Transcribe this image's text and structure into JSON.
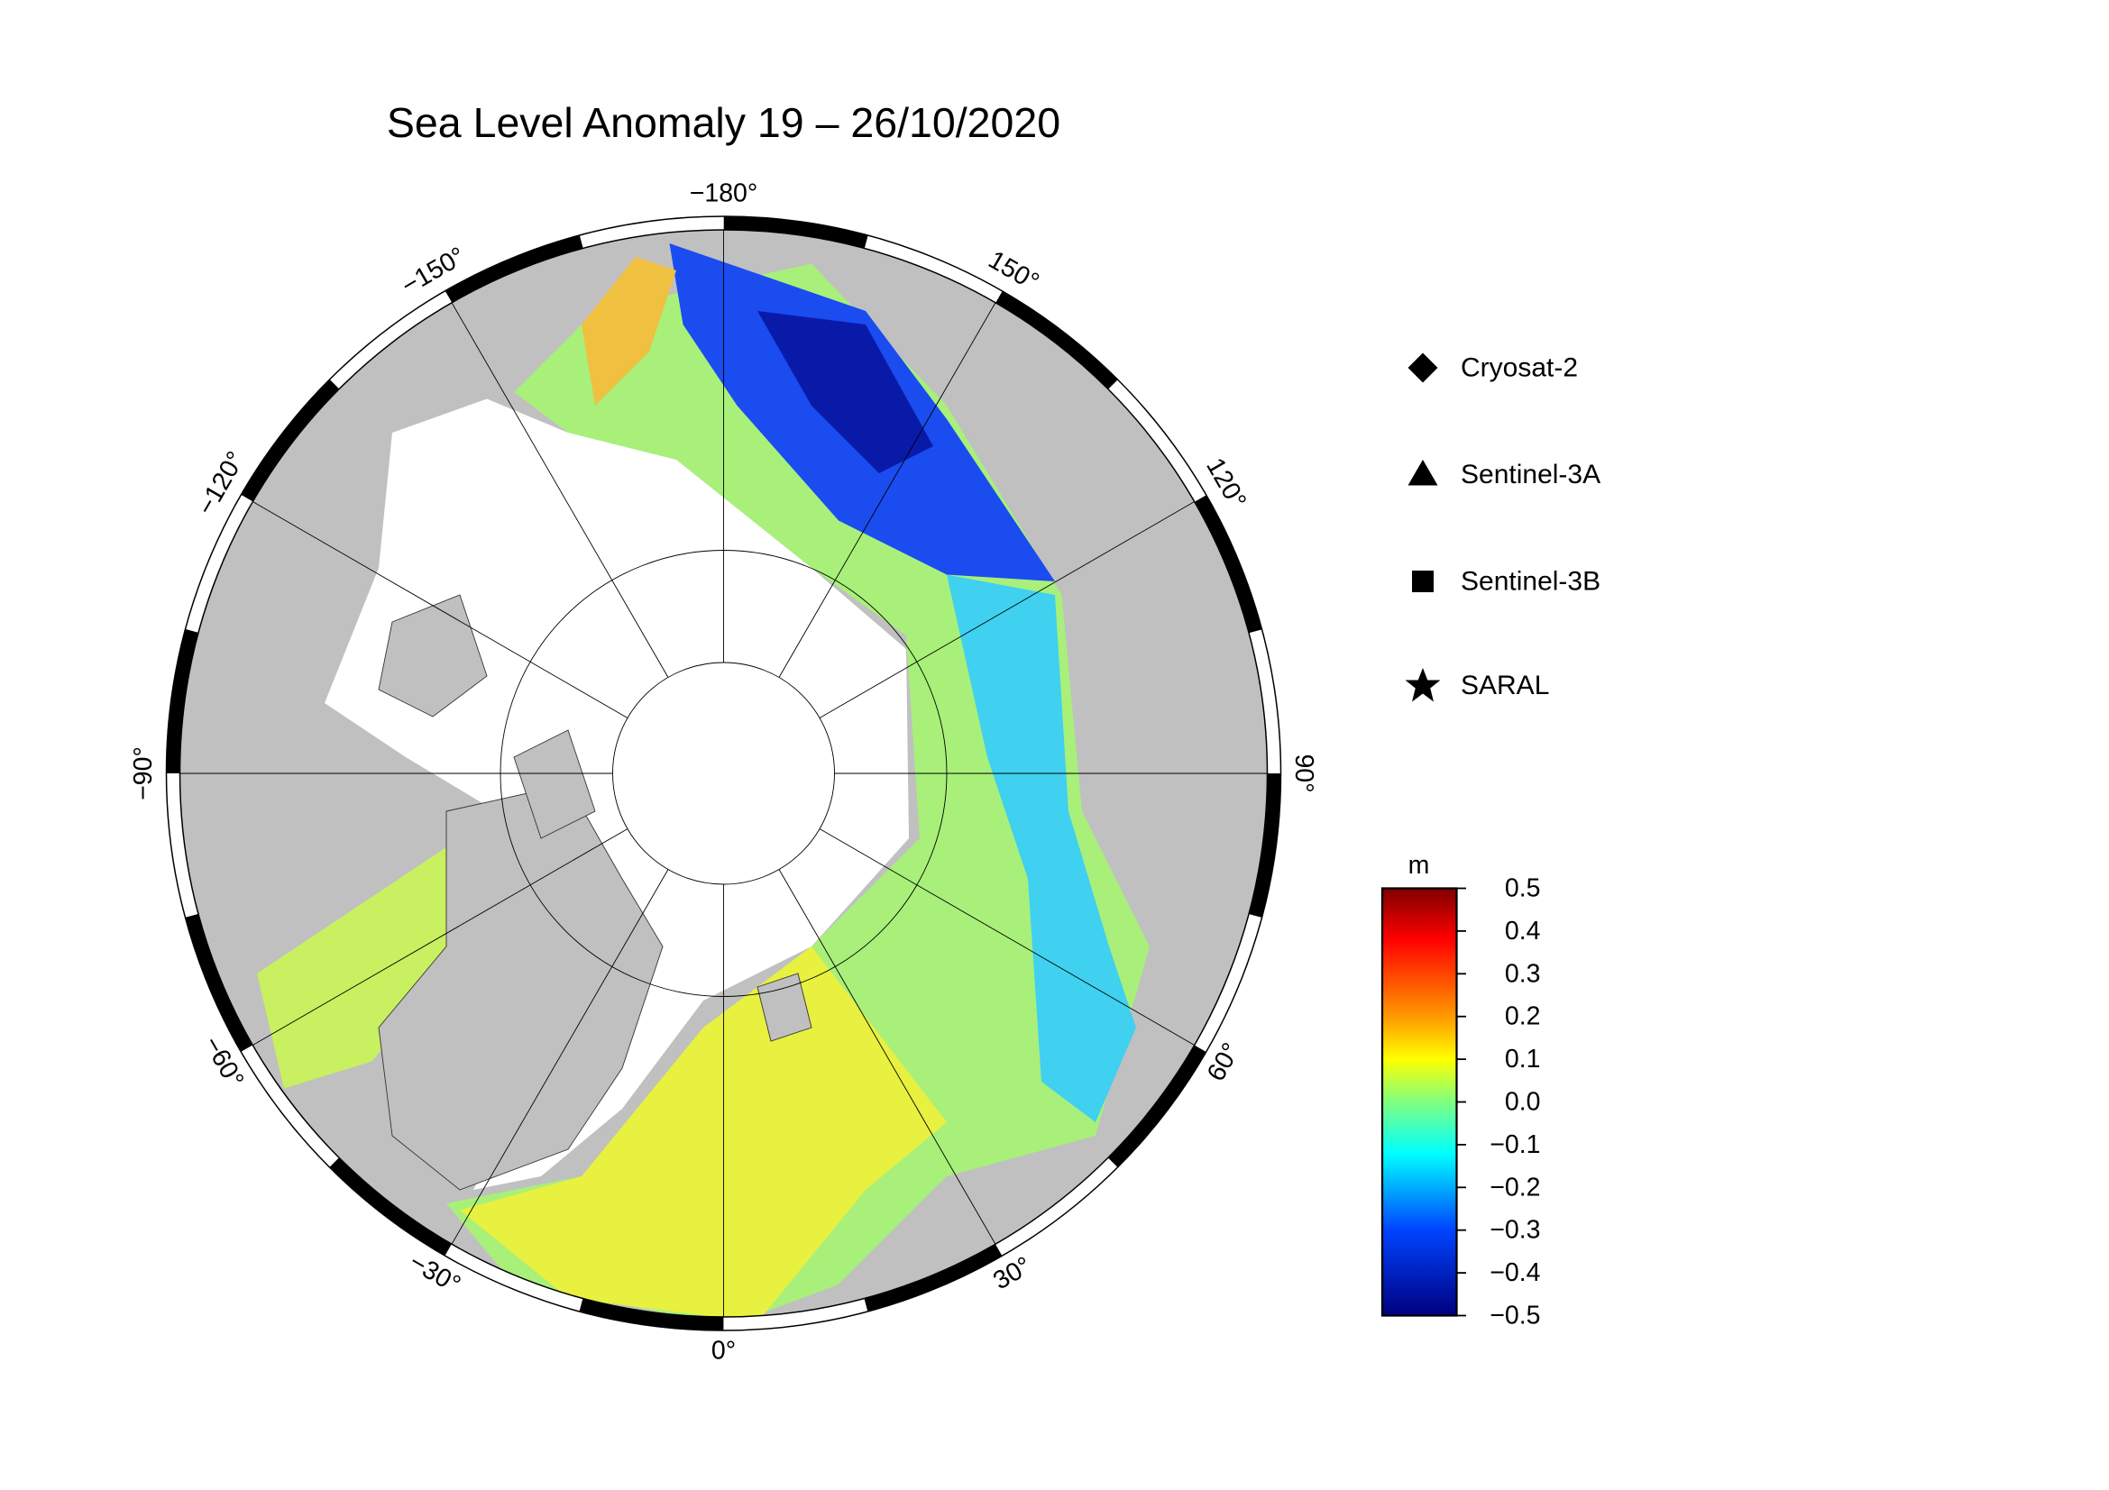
{
  "title": "Sea Level Anomaly 19 – 26/10/2020",
  "map": {
    "longitude_labels": [
      {
        "value": -180,
        "label": "−180°"
      },
      {
        "value": 150,
        "label": "150°"
      },
      {
        "value": 120,
        "label": "120°"
      },
      {
        "value": 90,
        "label": "90°"
      },
      {
        "value": 60,
        "label": "60°"
      },
      {
        "value": 30,
        "label": "30°"
      },
      {
        "value": 0,
        "label": "0°"
      },
      {
        "value": -30,
        "label": "−30°"
      },
      {
        "value": -60,
        "label": "−60°"
      },
      {
        "value": -90,
        "label": "−90°"
      },
      {
        "value": -120,
        "label": "−120°"
      },
      {
        "value": -150,
        "label": "−150°"
      }
    ]
  },
  "legend": {
    "items": [
      "Cryosat-2",
      "Sentinel-3A",
      "Sentinel-3B",
      "SARAL"
    ]
  },
  "colorbar": {
    "unit": "m",
    "lim": [
      -0.5,
      0.5
    ],
    "ticks": [
      0.5,
      0.4,
      0.3,
      0.2,
      0.1,
      {
        "value": 0,
        "label": "0.0"
      },
      {
        "value": -0.1,
        "label": "−0.1"
      },
      {
        "value": -0.2,
        "label": "−0.2"
      },
      {
        "value": -0.3,
        "label": "−0.3"
      },
      {
        "value": -0.4,
        "label": "−0.4"
      },
      {
        "value": -0.5,
        "label": "−0.5"
      }
    ]
  }
}
